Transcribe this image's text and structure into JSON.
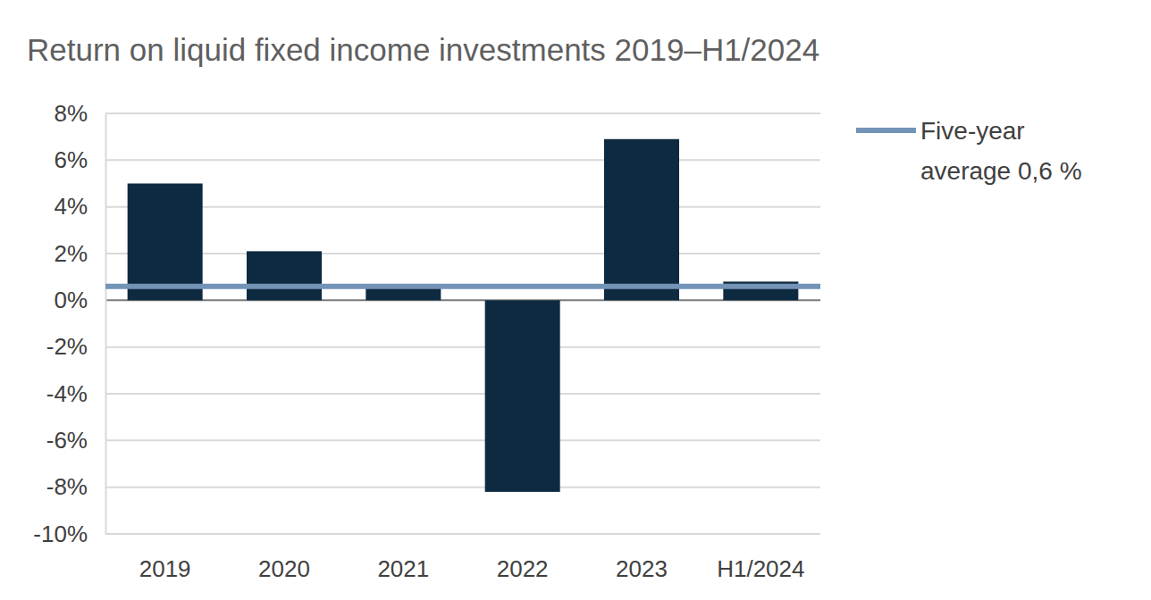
{
  "chart_data": {
    "type": "bar",
    "title": "Return on liquid fixed income investments 2019–H1/2024",
    "categories": [
      "2019",
      "2020",
      "2021",
      "2022",
      "2023",
      "H1/2024"
    ],
    "values": [
      5.0,
      2.1,
      0.6,
      -8.2,
      6.9,
      0.8
    ],
    "color": "#0d2a40",
    "reference_line": {
      "label": "Five-year average 0,6 %",
      "value": 0.6,
      "color": "#7393b7"
    },
    "ylim": [
      -10,
      8
    ],
    "yticks": [
      {
        "value": -10,
        "label": "-10%"
      },
      {
        "value": -8,
        "label": "-8%"
      },
      {
        "value": -6,
        "label": "-6%"
      },
      {
        "value": -4,
        "label": "-4%"
      },
      {
        "value": -2,
        "label": "-2%"
      },
      {
        "value": 0,
        "label": "0%"
      },
      {
        "value": 2,
        "label": "2%"
      },
      {
        "value": 4,
        "label": "4%"
      },
      {
        "value": 6,
        "label": "6%"
      },
      {
        "value": 8,
        "label": "8%"
      }
    ],
    "grid": true
  }
}
